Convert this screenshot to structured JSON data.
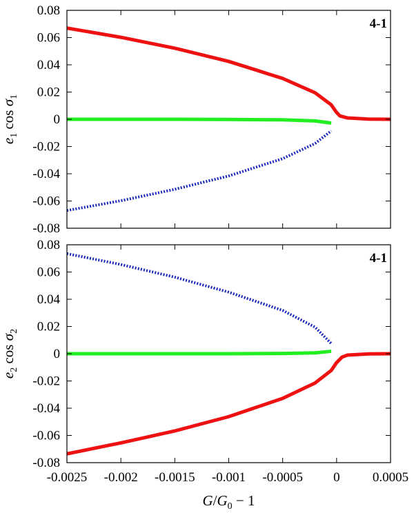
{
  "chart_data": [
    {
      "type": "line",
      "panel_label": "4-1",
      "ylabel_html": "<tspan>e</tspan><tspan font-size='14' dy='5' font-style='normal'>1</tspan><tspan dy='-5' font-style='normal'> cos </tspan><tspan>σ</tspan><tspan font-size='14' dy='5' font-style='normal'>1</tspan>",
      "xlim": [
        -0.0025,
        0.0005
      ],
      "ylim": [
        -0.08,
        0.08
      ],
      "x_ticks": [
        -0.0025,
        -0.002,
        -0.0015,
        -0.001,
        -0.0005,
        0,
        0.0005
      ],
      "y_ticks": [
        -0.08,
        -0.06,
        -0.04,
        -0.02,
        0,
        0.02,
        0.04,
        0.06,
        0.08
      ],
      "y_tick_labels": [
        "-0.08",
        "-0.06",
        "-0.04",
        "-0.02",
        "0",
        "0.02",
        "0.04",
        "0.06",
        "0.08"
      ],
      "series": [
        {
          "color": "#ee1111",
          "style": "solid",
          "width": 5,
          "x": [
            -0.0025,
            -0.002,
            -0.0015,
            -0.001,
            -0.0005,
            -0.0002,
            -5e-05,
            0,
            3e-05,
            0.0001,
            0.0003,
            0.0005
          ],
          "y": [
            0.067,
            0.0602,
            0.0522,
            0.0425,
            0.03,
            0.0195,
            0.0106,
            0.005,
            0.0025,
            0.001,
            0.0001,
            0
          ]
        },
        {
          "color": "#22ee22",
          "style": "solid",
          "width": 5,
          "x": [
            -0.0025,
            -0.0015,
            -0.001,
            -0.0005,
            -0.0002,
            -5e-05
          ],
          "y": [
            0,
            0,
            -0.0001,
            -0.0004,
            -0.0012,
            -0.0028
          ]
        },
        {
          "color": "#1a2ab8",
          "style": "dotted",
          "width": 4,
          "x": [
            -0.0025,
            -0.002,
            -0.0015,
            -0.001,
            -0.0005,
            -0.0002,
            -5e-05
          ],
          "y": [
            -0.067,
            -0.0598,
            -0.0514,
            -0.0416,
            -0.0289,
            -0.0178,
            -0.0085
          ]
        }
      ]
    },
    {
      "type": "line",
      "panel_label": "4-1",
      "ylabel_html": "<tspan>e</tspan><tspan font-size='14' dy='5' font-style='normal'>2</tspan><tspan dy='-5' font-style='normal'> cos </tspan><tspan>σ</tspan><tspan font-size='14' dy='5' font-style='normal'>2</tspan>",
      "xlim": [
        -0.0025,
        0.0005
      ],
      "ylim": [
        -0.08,
        0.08
      ],
      "x_ticks": [
        -0.0025,
        -0.002,
        -0.0015,
        -0.001,
        -0.0005,
        0,
        0.0005
      ],
      "x_tick_labels": [
        "-0.0025",
        "-0.002",
        "-0.0015",
        "-0.001",
        "-0.0005",
        "0",
        "0.0005"
      ],
      "y_ticks": [
        -0.08,
        -0.06,
        -0.04,
        -0.02,
        0,
        0.02,
        0.04,
        0.06,
        0.08
      ],
      "y_tick_labels": [
        "-0.08",
        "-0.06",
        "-0.04",
        "-0.02",
        "0",
        "0.02",
        "0.04",
        "0.06",
        "0.08"
      ],
      "xlabel_html": "<tspan>G</tspan><tspan font-style='normal'>/</tspan><tspan>G</tspan><tspan font-size='14' dy='5' font-style='normal'>0</tspan><tspan dy='-5' font-style='normal'> − 1</tspan>",
      "series": [
        {
          "color": "#1a2ab8",
          "style": "dotted",
          "width": 4,
          "x": [
            -0.0025,
            -0.002,
            -0.0015,
            -0.001,
            -0.0005,
            -0.0002,
            -5e-05
          ],
          "y": [
            0.0735,
            0.0655,
            0.0562,
            0.0452,
            0.0318,
            0.0195,
            0.0075
          ]
        },
        {
          "color": "#22ee22",
          "style": "solid",
          "width": 5,
          "x": [
            -0.0025,
            -0.0015,
            -0.001,
            -0.0005,
            -0.0002,
            -5e-05
          ],
          "y": [
            0,
            0,
            0,
            0.0002,
            0.0006,
            0.0018
          ]
        },
        {
          "color": "#ee1111",
          "style": "solid",
          "width": 5,
          "x": [
            -0.0025,
            -0.002,
            -0.0015,
            -0.001,
            -0.0005,
            -0.0002,
            -5e-05,
            0,
            5e-05,
            0.0001,
            0.0003,
            0.0005
          ],
          "y": [
            -0.0735,
            -0.0655,
            -0.0567,
            -0.0462,
            -0.0328,
            -0.0215,
            -0.0123,
            -0.0065,
            -0.0025,
            -0.001,
            -0.0001,
            0
          ]
        }
      ]
    }
  ]
}
